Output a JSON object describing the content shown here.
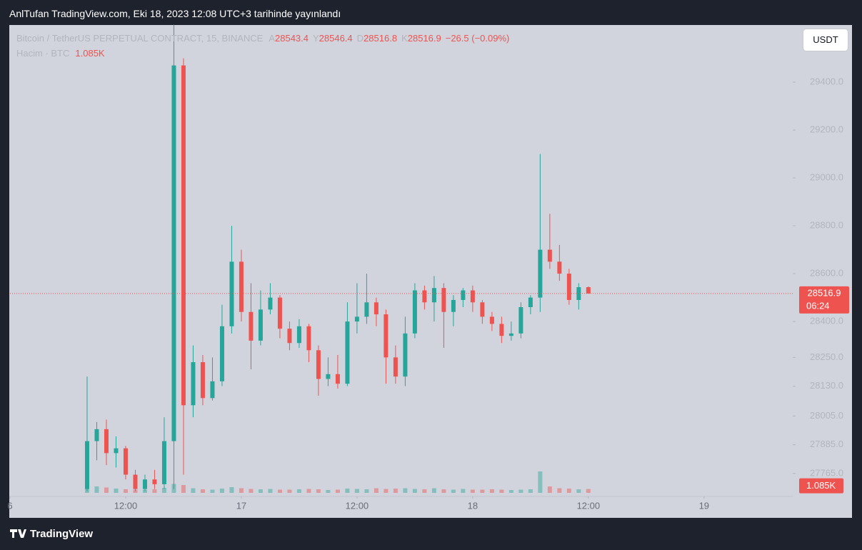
{
  "header": "AnlTufan TradingView.com, Eki 18, 2023 12:08 UTC+3 tarihinde yayınlandı",
  "footer": "TradingView",
  "chart_data": {
    "type": "candlestick",
    "title": "Bitcoin / TetherUS PERPETUAL CONTRACT, 15, BINANCE",
    "ohlc_names": [
      "A",
      "Y",
      "D",
      "K"
    ],
    "change": "−26.5 (−0.09%)",
    "volume_title": "Hacim · BTC",
    "volume_label": "1.085K",
    "currency": "USDT",
    "countdown": "06:24",
    "up_color": "#26a69a",
    "down_color": "#ef5350",
    "last_price_line": true,
    "x": [
      8,
      9,
      10,
      11,
      12,
      13,
      14,
      15,
      16,
      17,
      18,
      19,
      20,
      21,
      22,
      23,
      24,
      25,
      26,
      27,
      28,
      29,
      30,
      31,
      32,
      33,
      34,
      35,
      36,
      37,
      38,
      39,
      40,
      41,
      42,
      43,
      44,
      45,
      46,
      47,
      48,
      49,
      50,
      51,
      52,
      53,
      54,
      55,
      56,
      57,
      58,
      59,
      60
    ],
    "open": [
      27700,
      27900,
      27950,
      27850,
      27870,
      27760,
      27700,
      27740,
      27720,
      27900,
      29470,
      28050,
      28230,
      28080,
      28150,
      28380,
      28650,
      28440,
      28320,
      28450,
      28500,
      28370,
      28310,
      28380,
      28280,
      28160,
      28180,
      28140,
      28400,
      28420,
      28480,
      28430,
      28250,
      28170,
      28350,
      28530,
      28480,
      28540,
      28440,
      28490,
      28530,
      28480,
      28420,
      28390,
      28340,
      28350,
      28460,
      28500,
      28700,
      28650,
      28600,
      28490,
      28543.4
    ],
    "high": [
      28170,
      27980,
      27990,
      27920,
      27880,
      27780,
      27760,
      27780,
      28000,
      29640,
      29500,
      28300,
      28260,
      28250,
      28470,
      28800,
      28700,
      28560,
      28530,
      28560,
      28510,
      28400,
      28410,
      28390,
      28300,
      28250,
      28260,
      28480,
      28560,
      28600,
      28500,
      28450,
      28300,
      28420,
      28560,
      28550,
      28590,
      28560,
      28510,
      28540,
      28550,
      28490,
      28440,
      28420,
      28400,
      28480,
      28510,
      29100,
      28850,
      28720,
      28620,
      28560,
      28546.4
    ],
    "low": [
      27690,
      27820,
      27800,
      27790,
      27740,
      27690,
      27690,
      27700,
      27700,
      27700,
      27760,
      28000,
      28050,
      28070,
      28130,
      28350,
      28400,
      28200,
      28300,
      28430,
      28330,
      28280,
      28290,
      28230,
      28090,
      28130,
      28120,
      28130,
      28350,
      28390,
      28380,
      28140,
      28140,
      28130,
      28330,
      28450,
      28400,
      28290,
      28380,
      28460,
      28440,
      28390,
      28360,
      28310,
      28320,
      28330,
      28430,
      28440,
      28620,
      28570,
      28470,
      28450,
      28516.8
    ],
    "close": [
      27900,
      27950,
      27850,
      27870,
      27760,
      27700,
      27740,
      27720,
      27900,
      29470,
      28050,
      28230,
      28080,
      28150,
      28380,
      28650,
      28440,
      28320,
      28450,
      28500,
      28370,
      28310,
      28380,
      28280,
      28160,
      28180,
      28140,
      28400,
      28420,
      28480,
      28430,
      28250,
      28170,
      28350,
      28530,
      28480,
      28540,
      28440,
      28490,
      28530,
      28480,
      28420,
      28390,
      28340,
      28350,
      28460,
      28500,
      28700,
      28650,
      28600,
      28490,
      28543.4,
      28516.9
    ],
    "volume": [
      3500,
      1800,
      1500,
      1200,
      1000,
      900,
      900,
      1000,
      1400,
      2500,
      2200,
      1300,
      1000,
      900,
      1200,
      1600,
      1300,
      1100,
      1000,
      1100,
      900,
      900,
      1000,
      1100,
      1000,
      800,
      900,
      1200,
      1100,
      1000,
      1300,
      1100,
      1200,
      1300,
      1100,
      1000,
      1300,
      1000,
      900,
      1100,
      900,
      900,
      1000,
      900,
      800,
      900,
      1000,
      6000,
      1800,
      1300,
      1200,
      1000,
      1085
    ],
    "ylim": [
      27669,
      29639
    ],
    "yticks": [
      {
        "value": 29400,
        "label": "29400.0"
      },
      {
        "value": 29200,
        "label": "29200.0"
      },
      {
        "value": 29000,
        "label": "29000.0"
      },
      {
        "value": 28800,
        "label": "28800.0"
      },
      {
        "value": 28600,
        "label": "28600.0"
      },
      {
        "value": 28400,
        "label": "28400.0"
      },
      {
        "value": 28250,
        "label": "28250.0"
      },
      {
        "value": 28130,
        "label": "28130.0"
      },
      {
        "value": 28005,
        "label": "28005.0"
      },
      {
        "value": 27885,
        "label": "27885.0"
      },
      {
        "value": 27765,
        "label": "27765.0"
      }
    ],
    "xlim": [
      0,
      81.2
    ],
    "xticks": [
      {
        "value": 0,
        "label": "6"
      },
      {
        "value": 12,
        "label": "12:00"
      },
      {
        "value": 24,
        "label": "17"
      },
      {
        "value": 36,
        "label": "12:00"
      },
      {
        "value": 48,
        "label": "18"
      },
      {
        "value": 60,
        "label": "12:00"
      },
      {
        "value": 72,
        "label": "19"
      }
    ]
  }
}
